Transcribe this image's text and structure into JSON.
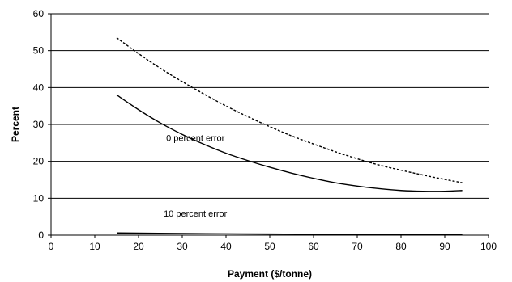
{
  "chart_data": {
    "type": "line",
    "title": "",
    "xlabel": "Payment ($/tonne)",
    "ylabel": "Percent",
    "xlim": [
      0,
      100
    ],
    "ylim": [
      0,
      60
    ],
    "xticks": [
      0,
      10,
      20,
      30,
      40,
      50,
      60,
      70,
      80,
      90,
      100
    ],
    "yticks": [
      0,
      10,
      20,
      30,
      40,
      50,
      60
    ],
    "grid": "horizontal",
    "legend": "none",
    "series": [
      {
        "style": "dashed",
        "x": [
          15,
          20,
          25,
          30,
          35,
          40,
          45,
          50,
          55,
          60,
          65,
          70,
          75,
          80,
          85,
          90,
          94
        ],
        "y": [
          53.5,
          49.2,
          45.2,
          41.6,
          38.2,
          35.0,
          32.1,
          29.4,
          26.9,
          24.7,
          22.6,
          20.7,
          19.0,
          17.6,
          16.3,
          15.1,
          14.2
        ]
      },
      {
        "style": "solid",
        "x": [
          15,
          20,
          25,
          30,
          35,
          40,
          45,
          50,
          55,
          60,
          65,
          70,
          75,
          80,
          85,
          90,
          94
        ],
        "y": [
          38.0,
          34.0,
          30.4,
          27.3,
          24.6,
          22.2,
          20.2,
          18.4,
          16.8,
          15.4,
          14.2,
          13.3,
          12.6,
          12.1,
          11.9,
          11.9,
          12.1
        ]
      },
      {
        "style": "solid",
        "x": [
          15,
          30,
          50,
          70,
          94
        ],
        "y": [
          0.6,
          0.45,
          0.3,
          0.2,
          0.1
        ]
      }
    ],
    "annotations": [
      {
        "text": "0 percent error",
        "x": 33,
        "y": 25.5
      },
      {
        "text": "10 percent error",
        "x": 33,
        "y": 5
      }
    ]
  }
}
